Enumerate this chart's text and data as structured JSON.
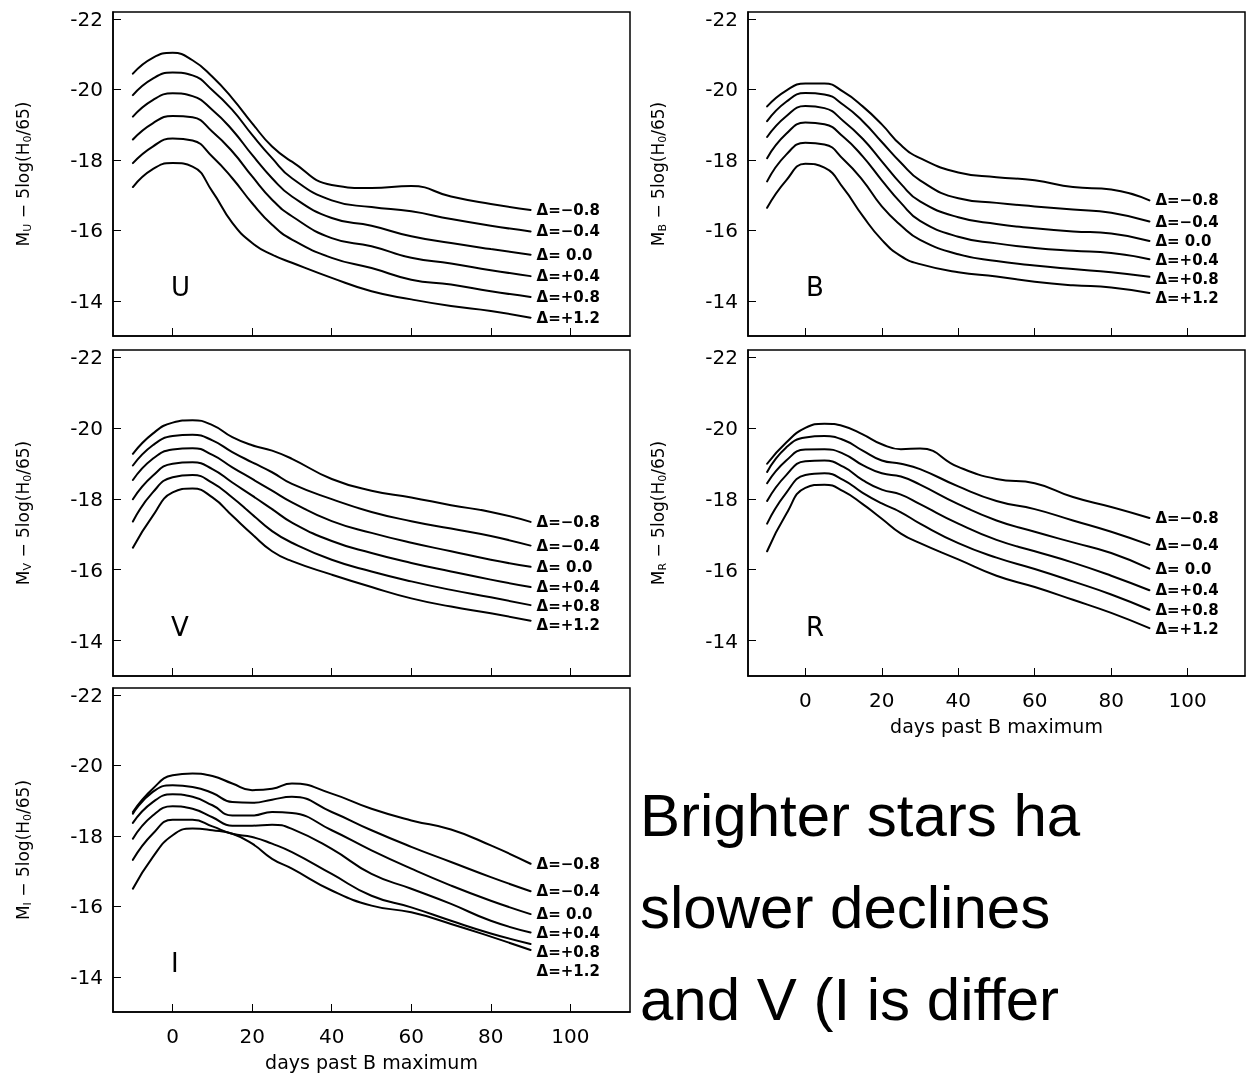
{
  "chart_data": [
    {
      "type": "line",
      "ylabel": "M$_{U}$ − 5log(H$_{0}$/65)",
      "annotations": [
        "U"
      ],
      "color": "#000000",
      "xlim": [
        -15,
        115
      ],
      "ylim": [
        -13,
        -22.2
      ],
      "xticks": [
        0,
        20,
        40,
        60,
        80,
        100
      ],
      "yticks": [
        -22,
        -20,
        -18,
        -16,
        -14
      ],
      "tick_labels": "y",
      "x": [
        -10,
        -5,
        0,
        5,
        10,
        15,
        20,
        25,
        30,
        40,
        50,
        60,
        70,
        80,
        90
      ],
      "series": [
        {
          "name": "Δ=−0.8",
          "values": [
            -20.45,
            -20.9,
            -21.04,
            -20.83,
            -20.36,
            -19.75,
            -19.04,
            -18.38,
            -17.95,
            -17.29,
            -17.2,
            -17.26,
            -16.96,
            -16.75,
            -16.58
          ]
        },
        {
          "name": "Δ=−0.4",
          "values": [
            -19.84,
            -20.31,
            -20.48,
            -20.4,
            -19.98,
            -19.42,
            -18.71,
            -18.05,
            -17.48,
            -16.85,
            -16.66,
            -16.54,
            -16.32,
            -16.13,
            -15.97
          ]
        },
        {
          "name": "Δ= 0.0",
          "values": [
            -19.23,
            -19.7,
            -19.89,
            -19.81,
            -19.42,
            -18.85,
            -18.14,
            -17.48,
            -16.96,
            -16.35,
            -16.13,
            -15.83,
            -15.64,
            -15.47,
            -15.31
          ]
        },
        {
          "name": "Δ=+0.4",
          "values": [
            -18.58,
            -19.04,
            -19.25,
            -19.21,
            -18.8,
            -18.24,
            -17.53,
            -16.87,
            -16.4,
            -15.78,
            -15.55,
            -15.22,
            -15.06,
            -14.87,
            -14.7
          ]
        },
        {
          "name": "Δ=+0.8",
          "values": [
            -17.91,
            -18.38,
            -18.61,
            -18.55,
            -18.09,
            -17.48,
            -16.77,
            -16.16,
            -15.74,
            -15.22,
            -14.93,
            -14.6,
            -14.46,
            -14.27,
            -14.11
          ]
        },
        {
          "name": "Δ=+1.2",
          "values": [
            -17.23,
            -17.74,
            -17.91,
            -17.81,
            -17.1,
            -16.21,
            -15.64,
            -15.31,
            -15.08,
            -14.65,
            -14.27,
            -14.04,
            -13.85,
            -13.71,
            -13.52
          ]
        }
      ]
    },
    {
      "type": "line",
      "ylabel": "M$_{B}$ − 5log(H$_{0}$/65)",
      "annotations": [
        "B"
      ],
      "color": "#000000",
      "xlim": [
        -15,
        115
      ],
      "ylim": [
        -13,
        -22.2
      ],
      "xticks": [
        0,
        20,
        40,
        60,
        80,
        100
      ],
      "yticks": [
        -22,
        -20,
        -18,
        -16,
        -14
      ],
      "tick_labels": "y",
      "x": [
        -10,
        -5,
        0,
        5,
        10,
        15,
        20,
        25,
        30,
        40,
        50,
        60,
        70,
        80,
        90
      ],
      "series": [
        {
          "name": "Δ=−0.8",
          "values": [
            -19.52,
            -19.97,
            -20.17,
            -20.17,
            -19.93,
            -19.52,
            -19.01,
            -18.42,
            -18.05,
            -17.64,
            -17.51,
            -17.42,
            -17.23,
            -17.16,
            -16.85
          ]
        },
        {
          "name": "Δ=−0.4",
          "values": [
            -19.1,
            -19.65,
            -19.9,
            -19.86,
            -19.56,
            -19.1,
            -18.51,
            -17.92,
            -17.42,
            -16.91,
            -16.78,
            -16.68,
            -16.59,
            -16.5,
            -16.25
          ]
        },
        {
          "name": "Δ= 0.0",
          "values": [
            -18.65,
            -19.24,
            -19.53,
            -19.47,
            -19.1,
            -18.6,
            -17.96,
            -17.32,
            -16.82,
            -16.37,
            -16.18,
            -16.06,
            -15.97,
            -15.91,
            -15.7
          ]
        },
        {
          "name": "Δ=+0.4",
          "values": [
            -18.05,
            -18.74,
            -19.06,
            -19.01,
            -18.65,
            -18.1,
            -17.42,
            -16.78,
            -16.27,
            -15.82,
            -15.63,
            -15.5,
            -15.42,
            -15.36,
            -15.18
          ]
        },
        {
          "name": "Δ=+0.8",
          "values": [
            -17.39,
            -18.15,
            -18.49,
            -18.44,
            -18.01,
            -17.42,
            -16.68,
            -16.14,
            -15.73,
            -15.32,
            -15.13,
            -15.0,
            -14.9,
            -14.81,
            -14.68
          ]
        },
        {
          "name": "Δ=+1.2",
          "values": [
            -16.64,
            -17.42,
            -17.89,
            -17.78,
            -17.19,
            -16.41,
            -15.73,
            -15.27,
            -15.04,
            -14.81,
            -14.69,
            -14.54,
            -14.44,
            -14.38,
            -14.22
          ]
        }
      ]
    },
    {
      "type": "line",
      "ylabel": "M$_{V}$ − 5log(H$_{0}$/65)",
      "annotations": [
        "V"
      ],
      "color": "#000000",
      "xlim": [
        -15,
        115
      ],
      "ylim": [
        -13,
        -22.2
      ],
      "xticks": [
        0,
        20,
        40,
        60,
        80,
        100
      ],
      "yticks": [
        -22,
        -20,
        -18,
        -16,
        -14
      ],
      "tick_labels": "y",
      "x": [
        -10,
        -5,
        0,
        5,
        10,
        15,
        20,
        25,
        30,
        40,
        50,
        60,
        70,
        80,
        90
      ],
      "series": [
        {
          "name": "Δ=−0.8",
          "values": [
            -19.27,
            -19.84,
            -20.15,
            -20.22,
            -20.08,
            -19.74,
            -19.51,
            -19.36,
            -19.13,
            -18.56,
            -18.23,
            -18.04,
            -17.82,
            -17.63,
            -17.35
          ]
        },
        {
          "name": "Δ=−0.4",
          "values": [
            -18.94,
            -19.51,
            -19.77,
            -19.81,
            -19.65,
            -19.32,
            -19.03,
            -18.75,
            -18.42,
            -17.99,
            -17.63,
            -17.37,
            -17.16,
            -16.95,
            -16.68
          ]
        },
        {
          "name": "Δ= 0.0",
          "values": [
            -18.53,
            -19.13,
            -19.39,
            -19.43,
            -19.24,
            -18.89,
            -18.56,
            -18.23,
            -17.9,
            -17.37,
            -17.04,
            -16.76,
            -16.52,
            -16.28,
            -16.08
          ]
        },
        {
          "name": "Δ=+0.4",
          "values": [
            -17.99,
            -18.65,
            -18.99,
            -19.03,
            -18.84,
            -18.46,
            -18.09,
            -17.71,
            -17.33,
            -16.81,
            -16.47,
            -16.19,
            -15.95,
            -15.72,
            -15.51
          ]
        },
        {
          "name": "Δ=+0.8",
          "values": [
            -17.36,
            -18.18,
            -18.61,
            -18.67,
            -18.45,
            -18.04,
            -17.56,
            -17.09,
            -16.76,
            -16.28,
            -15.95,
            -15.67,
            -15.43,
            -15.22,
            -15.0
          ]
        },
        {
          "name": "Δ=+1.2",
          "values": [
            -16.62,
            -17.52,
            -18.18,
            -18.29,
            -18.04,
            -17.52,
            -17.0,
            -16.52,
            -16.24,
            -15.86,
            -15.51,
            -15.19,
            -14.96,
            -14.77,
            -14.56
          ]
        }
      ]
    },
    {
      "type": "line",
      "xlabel": "days past B maximum",
      "ylabel": "M$_{R}$ − 5log(H$_{0}$/65)",
      "annotations": [
        "R"
      ],
      "color": "#000000",
      "xlim": [
        -15,
        115
      ],
      "ylim": [
        -13,
        -22.2
      ],
      "xticks": [
        0,
        20,
        40,
        60,
        80,
        100
      ],
      "yticks": [
        -22,
        -20,
        -18,
        -16,
        -14
      ],
      "x": [
        -10,
        -5,
        0,
        5,
        10,
        15,
        20,
        25,
        30,
        40,
        50,
        60,
        70,
        80,
        90
      ],
      "series": [
        {
          "name": "Δ=−0.8",
          "values": [
            -18.99,
            -19.59,
            -20.0,
            -20.12,
            -20.05,
            -19.82,
            -19.54,
            -19.4,
            -19.42,
            -18.9,
            -18.56,
            -18.44,
            -18.05,
            -17.77,
            -17.46
          ]
        },
        {
          "name": "Δ=−0.4",
          "values": [
            -18.76,
            -19.45,
            -19.73,
            -19.77,
            -19.66,
            -19.36,
            -19.08,
            -18.99,
            -18.84,
            -18.35,
            -17.94,
            -17.71,
            -17.39,
            -17.07,
            -16.7
          ]
        },
        {
          "name": "Δ= 0.0",
          "values": [
            -18.44,
            -19.08,
            -19.39,
            -19.4,
            -19.27,
            -18.95,
            -18.72,
            -18.63,
            -18.4,
            -17.85,
            -17.39,
            -17.07,
            -16.77,
            -16.47,
            -16.03
          ]
        },
        {
          "name": "Δ=+0.4",
          "values": [
            -17.94,
            -18.67,
            -19.06,
            -19.08,
            -18.9,
            -18.53,
            -18.26,
            -18.12,
            -17.85,
            -17.3,
            -16.84,
            -16.52,
            -16.2,
            -15.83,
            -15.42
          ]
        },
        {
          "name": "Δ=+0.8",
          "values": [
            -17.3,
            -18.17,
            -18.67,
            -18.72,
            -18.53,
            -18.17,
            -17.87,
            -17.62,
            -17.3,
            -16.75,
            -16.34,
            -16.02,
            -15.67,
            -15.3,
            -14.87
          ]
        },
        {
          "name": "Δ=+1.2",
          "values": [
            -16.52,
            -17.57,
            -18.31,
            -18.4,
            -18.21,
            -17.85,
            -17.44,
            -17.02,
            -16.75,
            -16.29,
            -15.83,
            -15.51,
            -15.15,
            -14.78,
            -14.35
          ]
        }
      ]
    },
    {
      "type": "line",
      "xlabel": "days past B maximum",
      "ylabel": "M$_{I}$ − 5log(H$_{0}$/65)",
      "annotations": [
        "I"
      ],
      "color": "#000000",
      "xlim": [
        -15,
        115
      ],
      "ylim": [
        -13,
        -22.2
      ],
      "xticks": [
        0,
        20,
        40,
        60,
        80,
        100
      ],
      "yticks": [
        -22,
        -20,
        -18,
        -16,
        -14
      ],
      "x": [
        -10,
        -5,
        0,
        5,
        10,
        15,
        20,
        25,
        30,
        40,
        50,
        60,
        70,
        80,
        90
      ],
      "series": [
        {
          "name": "Δ=−0.8",
          "values": [
            -18.68,
            -19.34,
            -19.72,
            -19.77,
            -19.7,
            -19.49,
            -19.3,
            -19.34,
            -19.49,
            -19.2,
            -18.77,
            -18.44,
            -18.18,
            -17.73,
            -17.21
          ]
        },
        {
          "name": "Δ=−0.4",
          "values": [
            -18.63,
            -19.25,
            -19.44,
            -19.39,
            -19.22,
            -18.96,
            -18.94,
            -19.03,
            -19.11,
            -18.68,
            -18.16,
            -17.69,
            -17.26,
            -16.83,
            -16.43
          ]
        },
        {
          "name": "Δ= 0.0",
          "values": [
            -18.37,
            -18.96,
            -19.18,
            -19.11,
            -18.87,
            -18.58,
            -18.58,
            -18.68,
            -18.65,
            -18.16,
            -17.59,
            -17.07,
            -16.59,
            -16.16,
            -15.78
          ]
        },
        {
          "name": "Δ=+0.4",
          "values": [
            -17.92,
            -18.58,
            -18.84,
            -18.77,
            -18.53,
            -18.29,
            -18.29,
            -18.32,
            -18.2,
            -17.63,
            -16.92,
            -16.5,
            -16.07,
            -15.59,
            -15.26
          ]
        },
        {
          "name": "Δ=+0.8",
          "values": [
            -17.32,
            -18.06,
            -18.46,
            -18.46,
            -18.27,
            -18.06,
            -17.97,
            -17.78,
            -17.54,
            -16.92,
            -16.3,
            -15.97,
            -15.59,
            -15.23,
            -14.93
          ]
        },
        {
          "name": "Δ=+1.2",
          "values": [
            -16.5,
            -17.4,
            -18.02,
            -18.21,
            -18.16,
            -18.06,
            -17.78,
            -17.35,
            -17.07,
            -16.45,
            -16.02,
            -15.83,
            -15.5,
            -15.14,
            -14.76
          ]
        }
      ]
    },
    {
      "type": "other",
      "annotations": [
        "Brighter stars ha",
        "slower declines",
        "and V (I is differ"
      ]
    }
  ]
}
